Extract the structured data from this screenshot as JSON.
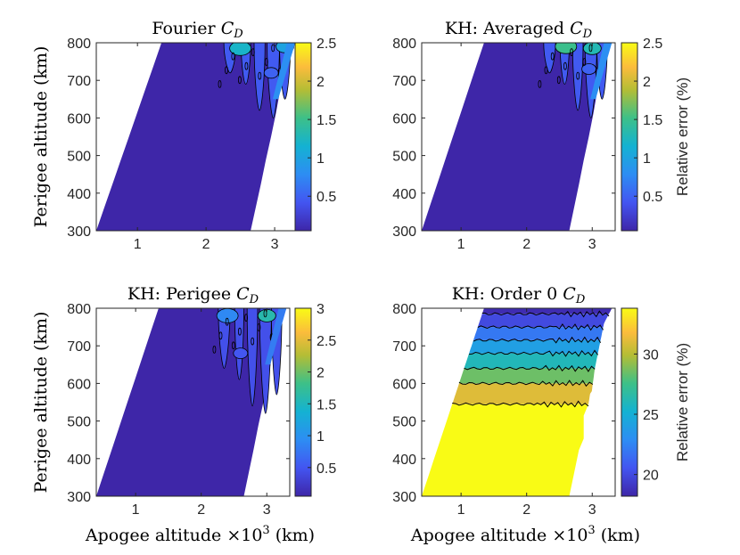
{
  "chart_data": [
    {
      "type": "contour",
      "title": "Fourier",
      "title_symbol": "C",
      "title_subscript": "D",
      "xlabel": "",
      "ylabel": "Perigee altitude (km)",
      "xticks": [
        1,
        2,
        3
      ],
      "yticks": [
        300,
        400,
        500,
        600,
        700,
        800
      ],
      "xlim": [
        0.4,
        3.35
      ],
      "ylim": [
        300,
        800
      ],
      "colorbar": {
        "ticks": [
          "0.5",
          "1",
          "1.5",
          "2",
          "2.5"
        ],
        "tick_values": [
          0.5,
          1,
          1.5,
          2,
          2.5
        ],
        "range": [
          0.05,
          2.5
        ],
        "label": ""
      },
      "base_level_color": "#3e26a8",
      "features": [
        {
          "x": 2.95,
          "y": 720,
          "value": 0.5
        },
        {
          "x": 3.15,
          "y": 790,
          "value": 1.0
        },
        {
          "x": 2.5,
          "y": 785,
          "value": 1.2
        }
      ]
    },
    {
      "type": "contour",
      "title": "KH: Averaged",
      "title_symbol": "C",
      "title_subscript": "D",
      "xlabel": "",
      "ylabel": "",
      "xticks": [
        1,
        2,
        3
      ],
      "yticks": [
        300,
        400,
        500,
        600,
        700,
        800
      ],
      "xlim": [
        0.4,
        3.35
      ],
      "ylim": [
        300,
        800
      ],
      "colorbar": {
        "ticks": [
          "0.5",
          "1",
          "1.5",
          "2",
          "2.5"
        ],
        "tick_values": [
          0.5,
          1,
          1.5,
          2,
          2.5
        ],
        "range": [
          0.05,
          2.5
        ],
        "label": "Relative error (%)"
      },
      "base_level_color": "#3e26a8",
      "features": [
        {
          "x": 2.95,
          "y": 730,
          "value": 0.5
        },
        {
          "x": 3.0,
          "y": 785,
          "value": 1.3
        },
        {
          "x": 2.6,
          "y": 790,
          "value": 1.5
        }
      ]
    },
    {
      "type": "contour",
      "title": "KH: Perigee",
      "title_symbol": "C",
      "title_subscript": "D",
      "xlabel": "Apogee altitude ×10",
      "xlabel_sup": "3",
      "xlabel_unit": " (km)",
      "ylabel": "Perigee altitude (km)",
      "xticks": [
        1,
        2,
        3
      ],
      "yticks": [
        300,
        400,
        500,
        600,
        700,
        800
      ],
      "xlim": [
        0.4,
        3.35
      ],
      "ylim": [
        300,
        800
      ],
      "colorbar": {
        "ticks": [
          "0.5",
          "1",
          "1.5",
          "2",
          "2.5",
          "3"
        ],
        "tick_values": [
          0.5,
          1,
          1.5,
          2,
          2.5,
          3
        ],
        "range": [
          0.05,
          3.0
        ],
        "label": ""
      },
      "base_level_color": "#3e26a8",
      "features": [
        {
          "x": 2.6,
          "y": 680,
          "value": 0.5
        },
        {
          "x": 3.0,
          "y": 780,
          "value": 1.6
        },
        {
          "x": 2.4,
          "y": 780,
          "value": 0.9
        }
      ]
    },
    {
      "type": "contour",
      "title": "KH: Order 0",
      "title_symbol": "C",
      "title_subscript": "D",
      "xlabel": "Apogee altitude ×10",
      "xlabel_sup": "3",
      "xlabel_unit": " (km)",
      "ylabel": "",
      "xticks": [
        1,
        2,
        3
      ],
      "yticks": [
        300,
        400,
        500,
        600,
        700,
        800
      ],
      "xlim": [
        0.4,
        3.35
      ],
      "ylim": [
        300,
        800
      ],
      "colorbar": {
        "ticks": [
          "20",
          "25",
          "30"
        ],
        "tick_values": [
          20,
          25,
          30
        ],
        "range": [
          18.2,
          33.8
        ],
        "label": "Relative error (%)"
      },
      "bands": [
        {
          "y_low": 300,
          "y_high": 545,
          "value": 33.8
        },
        {
          "y_low": 545,
          "y_high": 600,
          "value": 31.0
        },
        {
          "y_low": 600,
          "y_high": 640,
          "value": 28.5
        },
        {
          "y_low": 640,
          "y_high": 680,
          "value": 26.0
        },
        {
          "y_low": 680,
          "y_high": 715,
          "value": 24.0
        },
        {
          "y_low": 715,
          "y_high": 750,
          "value": 22.0
        },
        {
          "y_low": 750,
          "y_high": 785,
          "value": 20.0
        },
        {
          "y_low": 785,
          "y_high": 800,
          "value": 18.5
        }
      ]
    }
  ]
}
